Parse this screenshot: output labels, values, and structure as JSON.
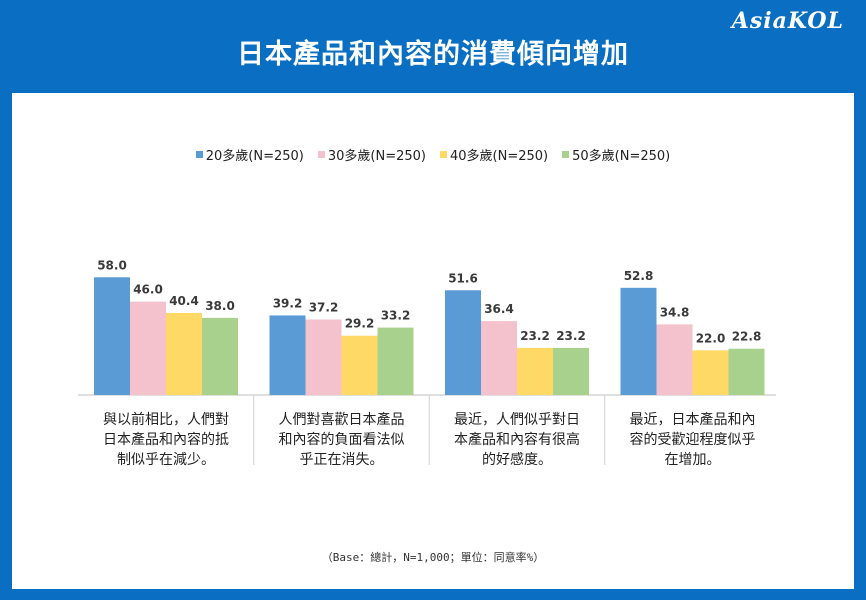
{
  "header": {
    "logo": "AsiaKOL",
    "title": "日本產品和內容的消費傾向增加"
  },
  "footnote": "（Base：總計，N=1,000；單位：同意率%）",
  "chart_data": {
    "type": "bar",
    "categories": [
      "與以前相比，人們對日本產品和內容的抵制似乎在減少。",
      "人們對喜歡日本產品和內容的負面看法似乎正在消失。",
      "最近，人們似乎對日本產品和內容有很高的好感度。",
      "最近，日本產品和內容的受歡迎程度似乎在增加。"
    ],
    "category_lines": [
      [
        "與以前相比，人們對",
        "日本產品和內容的抵",
        "制似乎在減少。"
      ],
      [
        "人們對喜歡日本產品",
        "和內容的負面看法似",
        "乎正在消失。"
      ],
      [
        "最近，人們似乎對日",
        "本產品和內容有很高",
        "的好感度。"
      ],
      [
        "最近，日本產品和內",
        "容的受歡迎程度似乎",
        "在增加。"
      ]
    ],
    "series": [
      {
        "name": "20多歲(N=250)",
        "color": "#5b9bd5",
        "values": [
          58.0,
          39.2,
          51.6,
          52.8
        ]
      },
      {
        "name": "30多歲(N=250)",
        "color": "#f4c2cc",
        "values": [
          46.0,
          37.2,
          36.4,
          34.8
        ]
      },
      {
        "name": "40多歲(N=250)",
        "color": "#ffd966",
        "values": [
          40.4,
          29.2,
          23.2,
          22.0
        ]
      },
      {
        "name": "50多歲(N=250)",
        "color": "#a9d18e",
        "values": [
          38.0,
          33.2,
          23.2,
          22.8
        ]
      }
    ],
    "ylim": [
      0,
      60
    ],
    "grid": false,
    "legend_position": "top"
  }
}
